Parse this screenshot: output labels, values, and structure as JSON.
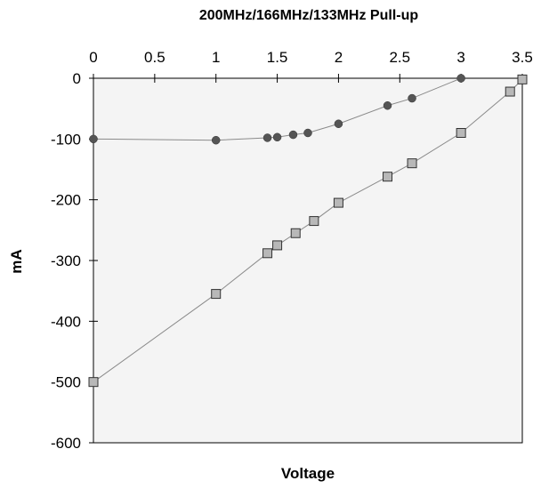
{
  "chart_data": {
    "type": "scatter",
    "title": "200MHz/166MHz/133MHz Pull-up",
    "xlabel": "Voltage",
    "ylabel": "mA",
    "xlim": [
      0,
      3.5
    ],
    "ylim": [
      -600,
      0
    ],
    "x_axis_position": "top",
    "x_ticks": [
      "0",
      "0.5",
      "1",
      "1.5",
      "2",
      "2.5",
      "3",
      "3.5"
    ],
    "y_ticks": [
      "0",
      "-100",
      "-200",
      "-300",
      "-400",
      "-500",
      "-600"
    ],
    "grid": false,
    "plot_background": "#f4f4f4",
    "series": [
      {
        "marker": "circle",
        "color": "#555555",
        "x": [
          0,
          1,
          1.42,
          1.5,
          1.63,
          1.75,
          2,
          2.4,
          2.6,
          3
        ],
        "y": [
          -100,
          -102,
          -98,
          -97,
          -93,
          -90,
          -75,
          -45,
          -33,
          0
        ]
      },
      {
        "marker": "square",
        "color": "#b8b8b8",
        "x": [
          0,
          1,
          1.42,
          1.5,
          1.65,
          1.8,
          2,
          2.4,
          2.6,
          3,
          3.4,
          3.5
        ],
        "y": [
          -500,
          -355,
          -288,
          -275,
          -255,
          -235,
          -205,
          -162,
          -140,
          -90,
          -22,
          -2
        ]
      }
    ]
  }
}
